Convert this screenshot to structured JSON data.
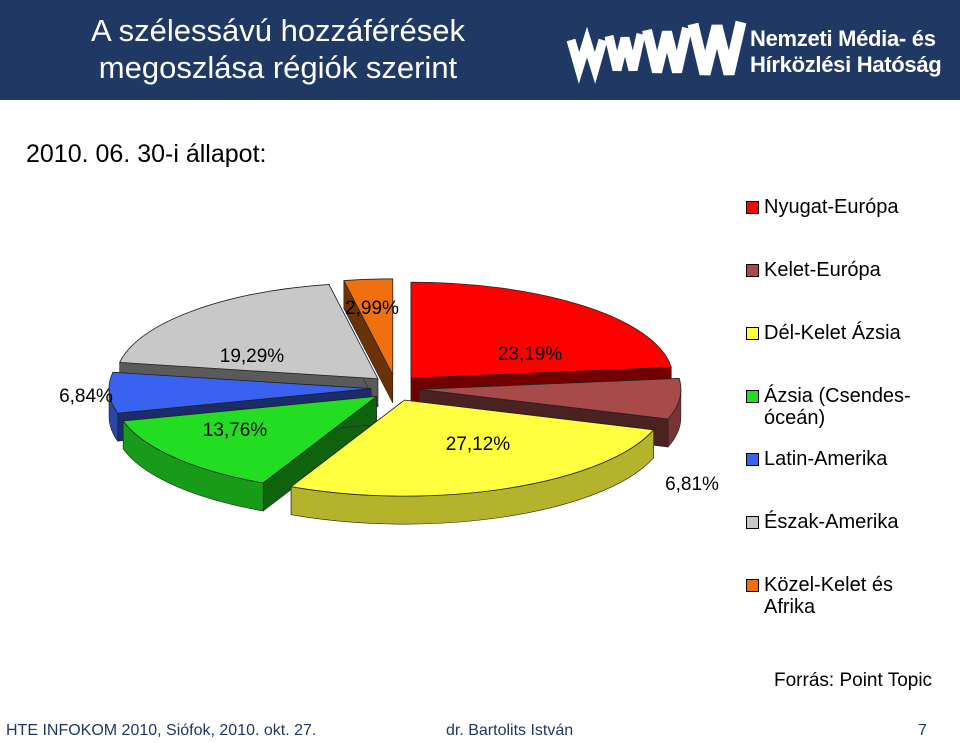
{
  "header": {
    "title_line1": "A szélessávú hozzáférések",
    "title_line2": "megoszlása régiók szerint",
    "logo_line1": "Nemzeti Média- és",
    "logo_line2": "Hírközlési Hatóság"
  },
  "status_line": "2010. 06. 30-i állapot:",
  "chart_data": {
    "type": "pie",
    "title": "",
    "legend_position": "right",
    "slices": [
      {
        "name": "Nyugat-Európa",
        "value": 23.19,
        "label": "23,19%",
        "color": "#ff0000"
      },
      {
        "name": "Kelet-Európa",
        "value": 6.81,
        "label": "6,81%",
        "color": "#a84a4a"
      },
      {
        "name": "Dél-Kelet Ázsia",
        "value": 27.12,
        "label": "27,12%",
        "color": "#ffff3f"
      },
      {
        "name": "Ázsia (Csendes-óceán)",
        "value": 13.76,
        "label": "13,76%",
        "color": "#22dd22"
      },
      {
        "name": "Latin-Amerika",
        "value": 6.84,
        "label": "6,84%",
        "color": "#3a62f0"
      },
      {
        "name": "Észak-Amerika",
        "value": 19.29,
        "label": "19,29%",
        "color": "#c8c8c8"
      },
      {
        "name": "Közel-Kelet és Afrika",
        "value": 2.99,
        "label": "2,99%",
        "color": "#f07010"
      }
    ]
  },
  "legend": {
    "items": [
      {
        "label": "Nyugat-Európa",
        "color": "#ff0000"
      },
      {
        "label": "Kelet-Európa",
        "color": "#a84a4a"
      },
      {
        "label": "Dél-Kelet Ázsia",
        "color": "#ffff3f"
      },
      {
        "label_line1": "Ázsia (Csendes-",
        "label_line2": "óceán)",
        "color": "#22dd22"
      },
      {
        "label": "Latin-Amerika",
        "color": "#3a62f0"
      },
      {
        "label": "Észak-Amerika",
        "color": "#c8c8c8"
      },
      {
        "label_line1": "Közel-Kelet és",
        "label_line2": "Afrika",
        "color": "#f07010"
      }
    ]
  },
  "source": "Forrás: Point Topic",
  "footer": {
    "event": "HTE INFOKOM 2010, Siófok, 2010. okt. 27.",
    "author": "dr. Bartolits István",
    "page": "7"
  }
}
